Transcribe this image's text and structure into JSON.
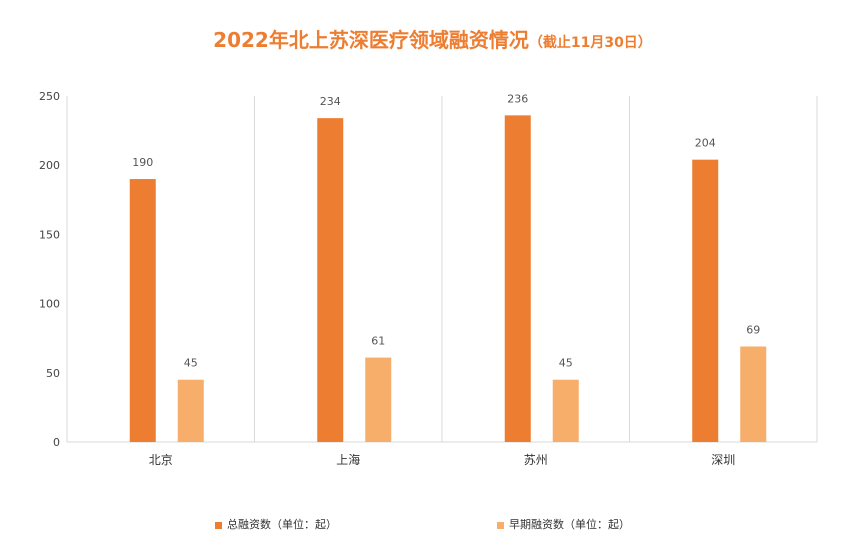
{
  "chart_data": {
    "type": "bar",
    "title": "2022年北上苏深医疗领域融资情况",
    "subtitle": "（截止11月30日）",
    "categories": [
      "北京",
      "上海",
      "苏州",
      "深圳"
    ],
    "series": [
      {
        "name": "总融资数（单位：起）",
        "values": [
          190,
          234,
          236,
          204
        ],
        "color": "#ED7D31"
      },
      {
        "name": "早期融资数（单位：起）",
        "values": [
          45,
          61,
          45,
          69
        ],
        "color": "#F6AE6A"
      }
    ],
    "ylim": [
      0,
      250
    ],
    "yticks": [
      0,
      50,
      100,
      150,
      200,
      250
    ],
    "xlabel": "",
    "ylabel": "",
    "grid": "vertical category separators",
    "legend": "bottom"
  }
}
